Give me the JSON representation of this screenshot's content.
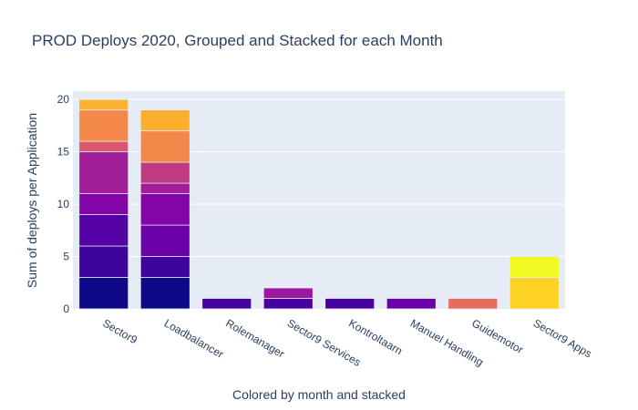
{
  "chart_data": {
    "type": "bar",
    "stacked": true,
    "title": "PROD Deploys 2020, Grouped and Stacked for each Month",
    "xlabel": "Colored by month and stacked",
    "ylabel": "Sum of deploys per Application",
    "ylim": [
      0,
      20.8
    ],
    "yticks": [
      "0",
      "5",
      "10",
      "15",
      "20"
    ],
    "grid": true,
    "legend": "none",
    "plot_bg": "#e5ecf6",
    "categories": [
      "Sector9",
      "Loadbalancer",
      "Rolemanager",
      "Sector9 Services",
      "Kontroltaarn",
      "Manuel Handling",
      "Guidemotor",
      "Sector9 Apps"
    ],
    "stacks": [
      [
        {
          "value": 3,
          "color": "#0d0887"
        },
        {
          "value": 3,
          "color": "#3e049c"
        },
        {
          "value": 3,
          "color": "#5402a3"
        },
        {
          "value": 2,
          "color": "#8405a7"
        },
        {
          "value": 4,
          "color": "#a01f98"
        },
        {
          "value": 1,
          "color": "#d8576b"
        },
        {
          "value": 3,
          "color": "#f48849"
        },
        {
          "value": 1,
          "color": "#fdb32f"
        }
      ],
      [
        {
          "value": 3,
          "color": "#0d0887"
        },
        {
          "value": 2,
          "color": "#3e049c"
        },
        {
          "value": 3,
          "color": "#6a00a8"
        },
        {
          "value": 3,
          "color": "#8405a7"
        },
        {
          "value": 1,
          "color": "#a01f98"
        },
        {
          "value": 2,
          "color": "#c03a83"
        },
        {
          "value": 3,
          "color": "#f48849"
        },
        {
          "value": 2,
          "color": "#feae2d"
        }
      ],
      [
        {
          "value": 1,
          "color": "#46039f"
        }
      ],
      [
        {
          "value": 1,
          "color": "#46039f"
        },
        {
          "value": 1,
          "color": "#9c179e"
        }
      ],
      [
        {
          "value": 1,
          "color": "#46039f"
        }
      ],
      [
        {
          "value": 1,
          "color": "#6a00a8"
        }
      ],
      [
        {
          "value": 1,
          "color": "#e66c5c"
        }
      ],
      [
        {
          "value": 3,
          "color": "#fdd225"
        },
        {
          "value": 2,
          "color": "#f0f921"
        }
      ]
    ]
  }
}
